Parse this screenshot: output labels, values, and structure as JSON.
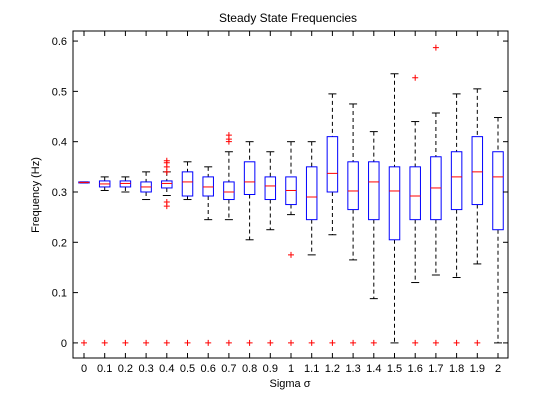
{
  "chart_data": {
    "type": "box",
    "title": "Steady State Frequencies",
    "xlabel": "Sigma σ",
    "ylabel": "Frequency (Hz)",
    "ylim": [
      -0.03,
      0.62
    ],
    "yticks": [
      0,
      0.1,
      0.2,
      0.3,
      0.4,
      0.5,
      0.6
    ],
    "yticklabels": [
      "0",
      "0.1",
      "0.2",
      "0.3",
      "0.4",
      "0.5",
      "0.6"
    ],
    "grid": false,
    "colors": {
      "box": "#0000ff",
      "median": "#ff0000",
      "whisker": "#000000",
      "outlier": "#ff0000"
    },
    "categories": [
      "0",
      "0.1",
      "0.2",
      "0.3",
      "0.4",
      "0.5",
      "0.6",
      "0.7",
      "0.8",
      "0.9",
      "1",
      "1.1",
      "1.2",
      "1.3",
      "1.4",
      "1.5",
      "1.6",
      "1.7",
      "1.8",
      "1.9",
      "2"
    ],
    "boxes": [
      {
        "q1": 0.318,
        "median": 0.319,
        "q3": 0.32,
        "whislo": 0.318,
        "whishi": 0.32,
        "fliers": [
          0
        ]
      },
      {
        "q1": 0.31,
        "median": 0.316,
        "q3": 0.322,
        "whislo": 0.303,
        "whishi": 0.33,
        "fliers": [
          0
        ]
      },
      {
        "q1": 0.31,
        "median": 0.317,
        "q3": 0.322,
        "whislo": 0.3,
        "whishi": 0.33,
        "fliers": [
          0
        ]
      },
      {
        "q1": 0.3,
        "median": 0.31,
        "q3": 0.32,
        "whislo": 0.285,
        "whishi": 0.34,
        "fliers": [
          0
        ]
      },
      {
        "q1": 0.308,
        "median": 0.317,
        "q3": 0.322,
        "whislo": 0.293,
        "whishi": 0.34,
        "fliers": [
          0,
          0.272,
          0.28,
          0.34,
          0.35,
          0.358,
          0.362
        ]
      },
      {
        "q1": 0.292,
        "median": 0.32,
        "q3": 0.34,
        "whislo": 0.285,
        "whishi": 0.36,
        "fliers": [
          0
        ]
      },
      {
        "q1": 0.292,
        "median": 0.31,
        "q3": 0.33,
        "whislo": 0.245,
        "whishi": 0.35,
        "fliers": [
          0
        ]
      },
      {
        "q1": 0.285,
        "median": 0.3,
        "q3": 0.32,
        "whislo": 0.245,
        "whishi": 0.38,
        "fliers": [
          0,
          0.4,
          0.405,
          0.413
        ]
      },
      {
        "q1": 0.295,
        "median": 0.32,
        "q3": 0.36,
        "whislo": 0.205,
        "whishi": 0.4,
        "fliers": [
          0
        ]
      },
      {
        "q1": 0.285,
        "median": 0.312,
        "q3": 0.33,
        "whislo": 0.225,
        "whishi": 0.38,
        "fliers": [
          0
        ]
      },
      {
        "q1": 0.275,
        "median": 0.303,
        "q3": 0.33,
        "whislo": 0.255,
        "whishi": 0.4,
        "fliers": [
          0,
          0.175
        ]
      },
      {
        "q1": 0.245,
        "median": 0.29,
        "q3": 0.35,
        "whislo": 0.175,
        "whishi": 0.4,
        "fliers": [
          0
        ]
      },
      {
        "q1": 0.3,
        "median": 0.337,
        "q3": 0.41,
        "whislo": 0.215,
        "whishi": 0.495,
        "fliers": [
          0
        ]
      },
      {
        "q1": 0.265,
        "median": 0.302,
        "q3": 0.36,
        "whislo": 0.165,
        "whishi": 0.475,
        "fliers": [
          0
        ]
      },
      {
        "q1": 0.245,
        "median": 0.32,
        "q3": 0.36,
        "whislo": 0.088,
        "whishi": 0.42,
        "fliers": [
          0
        ]
      },
      {
        "q1": 0.205,
        "median": 0.302,
        "q3": 0.35,
        "whislo": 0.0,
        "whishi": 0.535,
        "fliers": []
      },
      {
        "q1": 0.245,
        "median": 0.292,
        "q3": 0.35,
        "whislo": 0.12,
        "whishi": 0.44,
        "fliers": [
          0,
          0.527
        ]
      },
      {
        "q1": 0.245,
        "median": 0.308,
        "q3": 0.37,
        "whislo": 0.135,
        "whishi": 0.457,
        "fliers": [
          0,
          0.587
        ]
      },
      {
        "q1": 0.265,
        "median": 0.33,
        "q3": 0.38,
        "whislo": 0.13,
        "whishi": 0.495,
        "fliers": [
          0
        ]
      },
      {
        "q1": 0.275,
        "median": 0.34,
        "q3": 0.41,
        "whislo": 0.157,
        "whishi": 0.505,
        "fliers": [
          0
        ]
      },
      {
        "q1": 0.225,
        "median": 0.33,
        "q3": 0.38,
        "whislo": 0.0,
        "whishi": 0.448,
        "fliers": []
      }
    ]
  }
}
